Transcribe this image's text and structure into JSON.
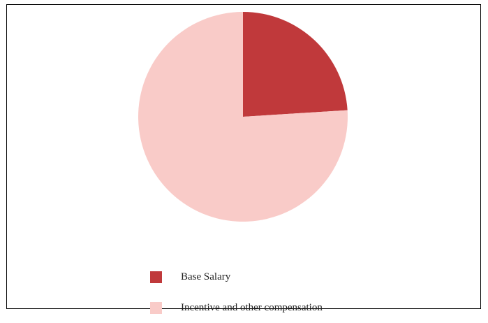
{
  "chart_data": {
    "type": "pie",
    "slices": [
      {
        "label": "Base Salary",
        "value": 24,
        "color": "#c0393b"
      },
      {
        "label": "Incentive and other compensation",
        "value": 76,
        "color": "#f9cbc8"
      }
    ],
    "start_angle": "12 o'clock",
    "direction": "clockwise",
    "legend": "bottom"
  }
}
